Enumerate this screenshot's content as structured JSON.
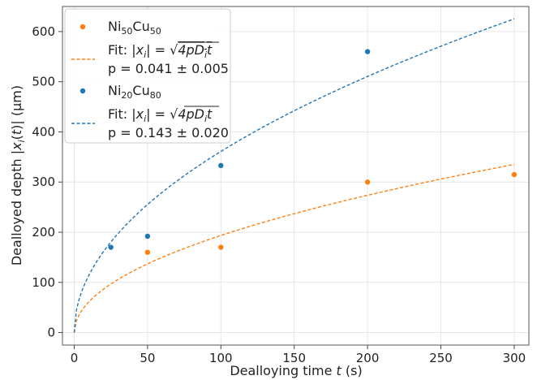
{
  "chart_data": {
    "type": "scatter",
    "xlabel": {
      "prefix": "Dealloying time ",
      "var": "t",
      "suffix": " (s)"
    },
    "ylabel": {
      "prefix": "Dealloyed depth |",
      "var": "x",
      "sub": "i",
      "mid": "(",
      "var2": "t",
      "end": ")| (μm)"
    },
    "xlim": [
      -8,
      310
    ],
    "ylim": [
      -25,
      650
    ],
    "xticks": [
      0,
      50,
      100,
      150,
      200,
      250,
      300
    ],
    "yticks": [
      0,
      100,
      200,
      300,
      400,
      500,
      600
    ],
    "xtick_labels": [
      "0",
      "50",
      "100",
      "150",
      "200",
      "250",
      "300"
    ],
    "ytick_labels": [
      "0",
      "100",
      "200",
      "300",
      "400",
      "500",
      "600"
    ],
    "grid": true,
    "legend_position": "top-left",
    "series": [
      {
        "name": "Ni50Cu50",
        "name_parts": {
          "a": "Ni",
          "a_sub": "50",
          "b": "Cu",
          "b_sub": "50"
        },
        "color": "#ff7f0e",
        "x": [
          50,
          100,
          200,
          300
        ],
        "y": [
          160,
          170,
          300,
          315
        ]
      },
      {
        "name": "Ni20Cu80",
        "name_parts": {
          "a": "Ni",
          "a_sub": "20",
          "b": "Cu",
          "b_sub": "80"
        },
        "color": "#1f77b4",
        "x": [
          25,
          50,
          100,
          200
        ],
        "y": [
          170,
          192,
          333,
          560
        ]
      }
    ],
    "fits": [
      {
        "series": "Ni50Cu50",
        "color": "#ff7f0e",
        "style": "dashed",
        "line1": "Fit: |x_i| = √(4pD_i t)",
        "line2": "p = 0.041 ± 0.005",
        "p_text": "p = 0.041 ± 0.005",
        "curve_scale": 19.35
      },
      {
        "series": "Ni20Cu80",
        "color": "#1f77b4",
        "style": "dashed",
        "line1": "Fit: |x_i| = √(4pD_i t)",
        "line2": "p = 0.143 ± 0.020",
        "p_text": "p = 0.143 ± 0.020",
        "curve_scale": 36.1
      }
    ]
  }
}
